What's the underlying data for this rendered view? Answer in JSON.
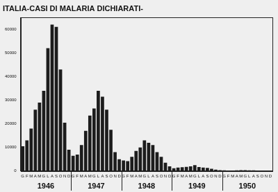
{
  "chart_data": {
    "type": "bar",
    "title": "ITALIA-CASI DI MALARIA DICHIARATI-",
    "categories": [
      "G",
      "F",
      "M",
      "A",
      "M",
      "G",
      "L",
      "A",
      "S",
      "O",
      "N",
      "D",
      "G",
      "F",
      "M",
      "A",
      "M",
      "G",
      "L",
      "A",
      "S",
      "O",
      "N",
      "D",
      "G",
      "F",
      "M",
      "A",
      "M",
      "G",
      "L",
      "A",
      "S",
      "O",
      "N",
      "D",
      "G",
      "F",
      "M",
      "A",
      "M",
      "G",
      "L",
      "A",
      "S",
      "O",
      "N",
      "D",
      "G",
      "F",
      "M",
      "A",
      "M",
      "G",
      "L",
      "A",
      "S",
      "O",
      "N",
      "D"
    ],
    "years": [
      "1946",
      "1947",
      "1948",
      "1949",
      "1950"
    ],
    "values": [
      10500,
      13000,
      18000,
      26000,
      29000,
      34000,
      52000,
      62000,
      61000,
      43000,
      20500,
      9000,
      6500,
      7000,
      11000,
      17000,
      23500,
      26500,
      34000,
      31500,
      26000,
      17500,
      8000,
      5000,
      4500,
      4200,
      6000,
      8500,
      10000,
      13000,
      12000,
      11000,
      8000,
      6000,
      3500,
      2000,
      1200,
      1500,
      1600,
      1800,
      2000,
      2500,
      1700,
      1500,
      1300,
      1000,
      600,
      400,
      300,
      250,
      250,
      300,
      400,
      350,
      300,
      300,
      200,
      150,
      100,
      100
    ],
    "color": "#1c1c1c",
    "ylim": [
      0,
      65000
    ],
    "yticks": [
      0,
      10000,
      20000,
      30000,
      40000,
      50000,
      60000
    ],
    "grid": false
  }
}
